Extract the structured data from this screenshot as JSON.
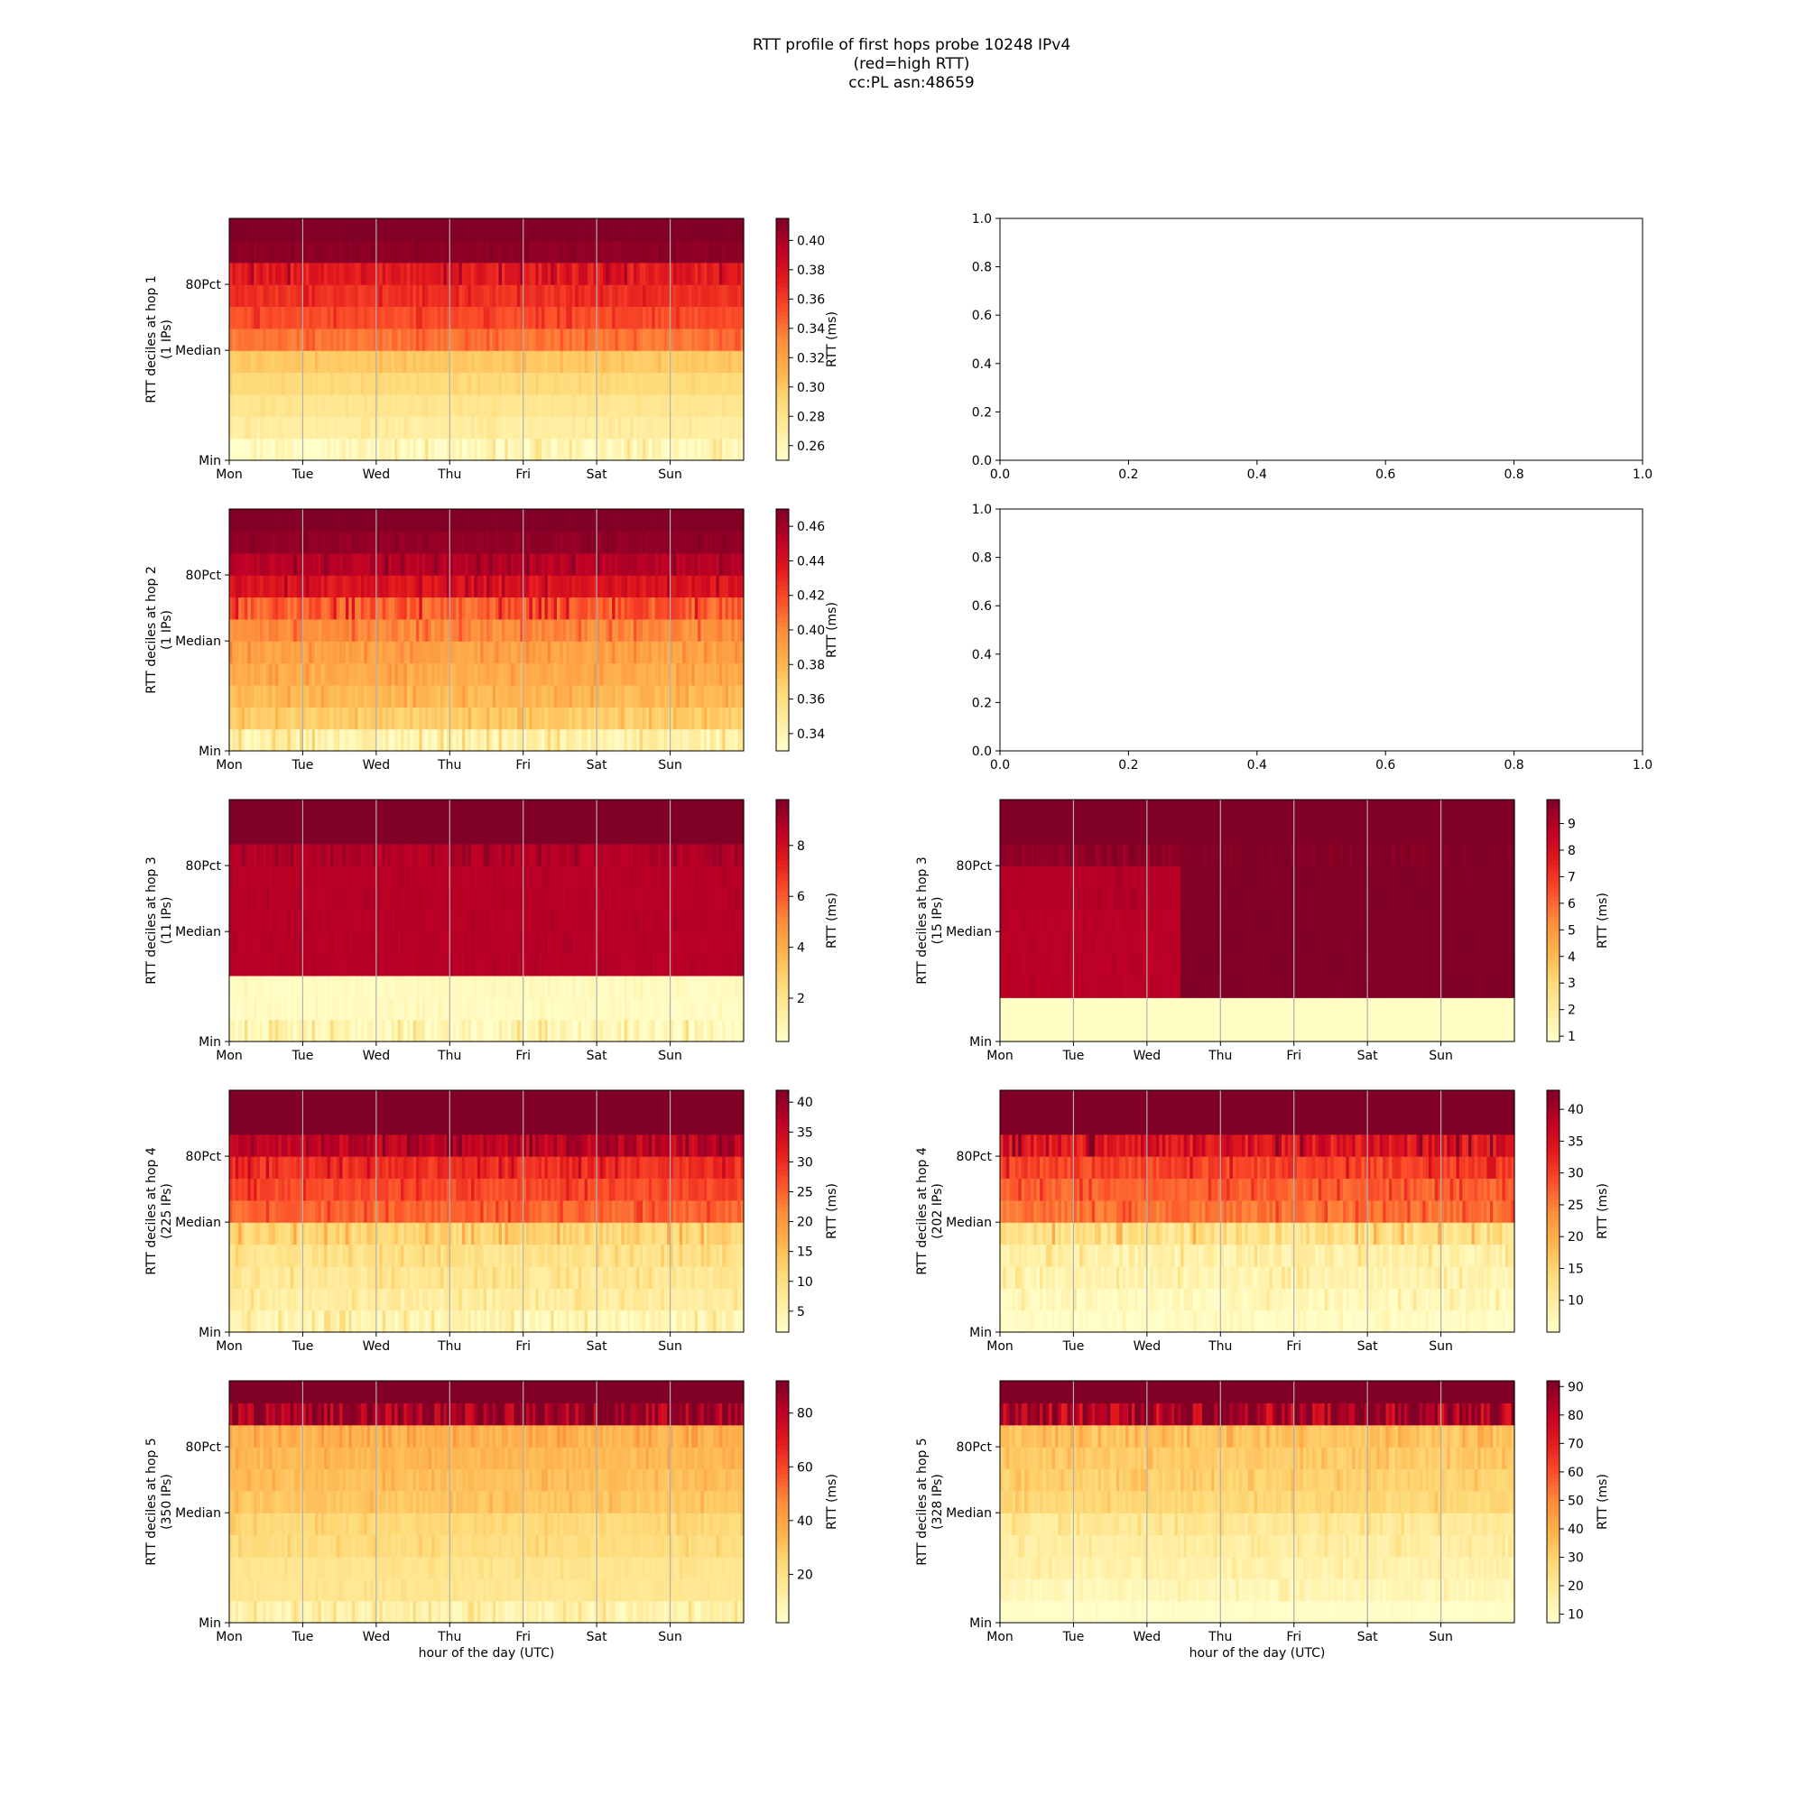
{
  "figure": {
    "title_lines": [
      "RTT profile of first hops probe 10248 IPv4",
      "(red=high RTT)",
      "cc:PL asn:48659"
    ]
  },
  "colormap": [
    "#ffffcc",
    "#ffeda0",
    "#fed976",
    "#feb24c",
    "#fd8d3c",
    "#fc4e2a",
    "#e31a1c",
    "#bd0026",
    "#800026"
  ],
  "chart_data": [
    {
      "panel": "hop1-left",
      "type": "heatmap",
      "grid_pos": [
        0,
        0
      ],
      "ylabel_lines": [
        "RTT deciles at hop 1",
        "(1 IPs)"
      ],
      "x_ticks": [
        "Mon",
        "Tue",
        "Wed",
        "Thu",
        "Fri",
        "Sat",
        "Sun"
      ],
      "y_ticks": [
        "Min",
        "Median",
        "80Pct"
      ],
      "colorbar": {
        "label": "RTT (ms)",
        "range": [
          0.25,
          0.415
        ],
        "ticks": [
          "0.26",
          "0.28",
          "0.30",
          "0.32",
          "0.34",
          "0.36",
          "0.38",
          "0.40"
        ]
      },
      "decile_levels": [
        0.259,
        0.27,
        0.278,
        0.289,
        0.3,
        0.34,
        0.355,
        0.365,
        0.376,
        0.41,
        0.415
      ],
      "noise": [
        0.012,
        0.004,
        0.003,
        0.003,
        0.004,
        0.006,
        0.006,
        0.006,
        0.012,
        0.003,
        0.002
      ]
    },
    {
      "panel": "hop1-right-empty",
      "type": "empty",
      "grid_pos": [
        0,
        1
      ],
      "x_ticks": [
        "0.0",
        "0.2",
        "0.4",
        "0.6",
        "0.8",
        "1.0"
      ],
      "y_ticks": [
        "0.0",
        "0.2",
        "0.4",
        "0.6",
        "0.8",
        "1.0"
      ]
    },
    {
      "panel": "hop2-left",
      "type": "heatmap",
      "grid_pos": [
        1,
        0
      ],
      "ylabel_lines": [
        "RTT deciles at hop 2",
        "(1 IPs)"
      ],
      "x_ticks": [
        "Mon",
        "Tue",
        "Wed",
        "Thu",
        "Fri",
        "Sat",
        "Sun"
      ],
      "y_ticks": [
        "Min",
        "Median",
        "80Pct"
      ],
      "colorbar": {
        "label": "RTT (ms)",
        "range": [
          0.33,
          0.47
        ],
        "ticks": [
          "0.34",
          "0.36",
          "0.38",
          "0.40",
          "0.42",
          "0.44",
          "0.46"
        ]
      },
      "decile_levels": [
        0.343,
        0.37,
        0.38,
        0.385,
        0.39,
        0.4,
        0.415,
        0.44,
        0.455,
        0.465,
        0.47
      ],
      "noise": [
        0.012,
        0.006,
        0.006,
        0.006,
        0.006,
        0.008,
        0.012,
        0.008,
        0.006,
        0.003,
        0.002
      ]
    },
    {
      "panel": "hop2-right-empty",
      "type": "empty",
      "grid_pos": [
        1,
        1
      ],
      "x_ticks": [
        "0.0",
        "0.2",
        "0.4",
        "0.6",
        "0.8",
        "1.0"
      ],
      "y_ticks": [
        "0.0",
        "0.2",
        "0.4",
        "0.6",
        "0.8",
        "1.0"
      ]
    },
    {
      "panel": "hop3-left",
      "type": "heatmap",
      "grid_pos": [
        2,
        0
      ],
      "ylabel_lines": [
        "RTT deciles at hop 3",
        "(11 IPs)"
      ],
      "x_ticks": [
        "Mon",
        "Tue",
        "Wed",
        "Thu",
        "Fri",
        "Sat",
        "Sun"
      ],
      "y_ticks": [
        "Min",
        "Median",
        "80Pct"
      ],
      "colorbar": {
        "label": "RTT (ms)",
        "range": [
          0.3,
          9.8
        ],
        "ticks": [
          "2",
          "4",
          "6",
          "8"
        ]
      },
      "decile_levels": [
        0.9,
        0.6,
        0.6,
        8.7,
        8.7,
        8.7,
        8.7,
        8.7,
        8.8,
        9.8,
        9.8
      ],
      "noise": [
        0.8,
        0.2,
        0.2,
        0.1,
        0.1,
        0.1,
        0.1,
        0.1,
        0.3,
        0.0,
        0.0
      ]
    },
    {
      "panel": "hop3-right",
      "type": "heatmap",
      "grid_pos": [
        2,
        1
      ],
      "ylabel_lines": [
        "RTT deciles at hop 3",
        "(15 IPs)"
      ],
      "x_ticks": [
        "Mon",
        "Tue",
        "Wed",
        "Thu",
        "Fri",
        "Sat",
        "Sun"
      ],
      "y_ticks": [
        "Min",
        "Median",
        "80Pct"
      ],
      "colorbar": {
        "label": "RTT (ms)",
        "range": [
          0.8,
          9.9
        ],
        "ticks": [
          "1",
          "2",
          "3",
          "4",
          "5",
          "6",
          "7",
          "8",
          "9"
        ]
      },
      "decile_levels": [
        1.0,
        1.0,
        8.8,
        8.8,
        8.8,
        8.8,
        8.9,
        8.9,
        9.6,
        9.9,
        9.9
      ],
      "noise": [
        0.0,
        0.0,
        0.1,
        0.1,
        0.1,
        0.1,
        0.1,
        0.1,
        0.3,
        0.0,
        0.0
      ],
      "level_shift": {
        "after_fraction": 0.35,
        "rows_to_max": [
          2,
          3,
          4,
          5,
          6,
          7,
          8
        ]
      }
    },
    {
      "panel": "hop4-left",
      "type": "heatmap",
      "grid_pos": [
        3,
        0
      ],
      "ylabel_lines": [
        "RTT deciles at hop 4",
        "(225 IPs)"
      ],
      "x_ticks": [
        "Mon",
        "Tue",
        "Wed",
        "Thu",
        "Fri",
        "Sat",
        "Sun"
      ],
      "y_ticks": [
        "Min",
        "Median",
        "80Pct"
      ],
      "colorbar": {
        "label": "RTT (ms)",
        "range": [
          1.5,
          42
        ],
        "ticks": [
          "5",
          "10",
          "15",
          "20",
          "25",
          "30",
          "35",
          "40"
        ]
      },
      "decile_levels": [
        4.5,
        6.5,
        8.0,
        9.0,
        12.0,
        25.0,
        27.5,
        30.0,
        37.0,
        42.0,
        42.0
      ],
      "noise": [
        3.0,
        2.0,
        2.0,
        2.0,
        3.0,
        2.0,
        2.0,
        2.5,
        4.0,
        0.0,
        0.0
      ]
    },
    {
      "panel": "hop4-right",
      "type": "heatmap",
      "grid_pos": [
        3,
        1
      ],
      "ylabel_lines": [
        "RTT deciles at hop 4",
        "(202 IPs)"
      ],
      "x_ticks": [
        "Mon",
        "Tue",
        "Wed",
        "Thu",
        "Fri",
        "Sat",
        "Sun"
      ],
      "y_ticks": [
        "Min",
        "Median",
        "80Pct"
      ],
      "colorbar": {
        "label": "RTT (ms)",
        "range": [
          5,
          43
        ],
        "ticks": [
          "10",
          "15",
          "20",
          "25",
          "30",
          "35",
          "40"
        ]
      },
      "decile_levels": [
        6.0,
        7.0,
        8.0,
        9.0,
        13.0,
        26.0,
        27.5,
        30.0,
        35.0,
        43.0,
        43.0
      ],
      "noise": [
        1.0,
        2.0,
        2.0,
        2.5,
        3.5,
        2.0,
        2.0,
        2.5,
        4.0,
        0.0,
        0.0
      ]
    },
    {
      "panel": "hop5-left",
      "type": "heatmap",
      "grid_pos": [
        4,
        0
      ],
      "ylabel_lines": [
        "RTT deciles at hop 5",
        "(350 IPs)"
      ],
      "x_ticks": [
        "Mon",
        "Tue",
        "Wed",
        "Thu",
        "Fri",
        "Sat",
        "Sun"
      ],
      "y_ticks": [
        "Min",
        "Median",
        "80Pct"
      ],
      "xlabel": "hour of the day (UTC)",
      "colorbar": {
        "label": "RTT (ms)",
        "range": [
          2,
          92
        ],
        "ticks": [
          "20",
          "40",
          "60",
          "80"
        ]
      },
      "decile_levels": [
        10,
        17,
        18,
        22,
        24,
        30,
        32,
        34,
        36,
        88,
        92
      ],
      "noise": [
        6,
        2,
        2,
        3,
        3,
        3,
        3,
        3,
        4,
        15,
        0
      ]
    },
    {
      "panel": "hop5-right",
      "type": "heatmap",
      "grid_pos": [
        4,
        1
      ],
      "ylabel_lines": [
        "RTT deciles at hop 5",
        "(328 IPs)"
      ],
      "x_ticks": [
        "Mon",
        "Tue",
        "Wed",
        "Thu",
        "Fri",
        "Sat",
        "Sun"
      ],
      "y_ticks": [
        "Min",
        "Median",
        "80Pct"
      ],
      "xlabel": "hour of the day (UTC)",
      "colorbar": {
        "label": "RTT (ms)",
        "range": [
          7,
          92
        ],
        "ticks": [
          "10",
          "20",
          "30",
          "40",
          "50",
          "60",
          "70",
          "80",
          "90"
        ]
      },
      "decile_levels": [
        8,
        12,
        15,
        17,
        20,
        28,
        30,
        32,
        34,
        85,
        92
      ],
      "noise": [
        1,
        3,
        3,
        3,
        4,
        3,
        3,
        3,
        4,
        15,
        0
      ]
    }
  ]
}
